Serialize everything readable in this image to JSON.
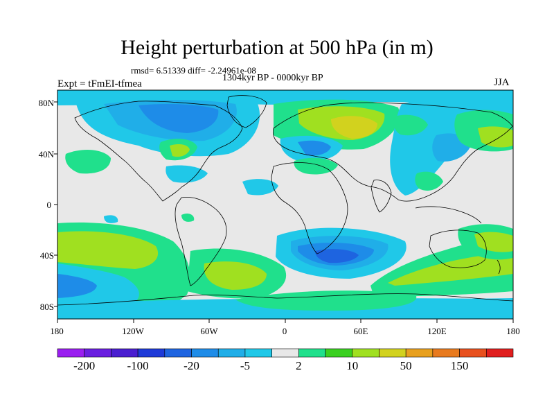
{
  "title": "Height perturbation at 500 hPa (in m)",
  "stats": "rmsd= 6.51339 diff= -2.24961e-08",
  "period": "1304kyr BP - 0000kyr BP",
  "experiment": "Expt = tFmEI-tfmea",
  "season": "JJA",
  "lat_labels": [
    "80N",
    "40N",
    "0",
    "40S",
    "80S"
  ],
  "lon_labels": [
    "180",
    "120W",
    "60W",
    "0",
    "60E",
    "120E",
    "180"
  ],
  "colorbar": {
    "colors": [
      "#9a1ef0",
      "#6a1ee0",
      "#4a1ed0",
      "#1e3ad8",
      "#1e64e0",
      "#1e8ce8",
      "#20aee8",
      "#20c8e8",
      "#e8e8e8",
      "#20e08c",
      "#3ad020",
      "#a0e020",
      "#d2d21e",
      "#e8a01e",
      "#e87a1e",
      "#e8501e",
      "#e01e1e"
    ],
    "labels": [
      "-200",
      "-100",
      "-20",
      "-5",
      "2",
      "10",
      "50",
      "150"
    ]
  },
  "map_colors": {
    "ocean_neutral": "#e8e8e8",
    "light_blue": "#20c8e8",
    "mid_blue": "#20aee8",
    "blue": "#1e8ce8",
    "deep_blue": "#1e64e0",
    "green_light": "#20e08c",
    "green": "#3ad020",
    "yellow_green": "#a0e020",
    "yellow": "#d2d21e"
  }
}
